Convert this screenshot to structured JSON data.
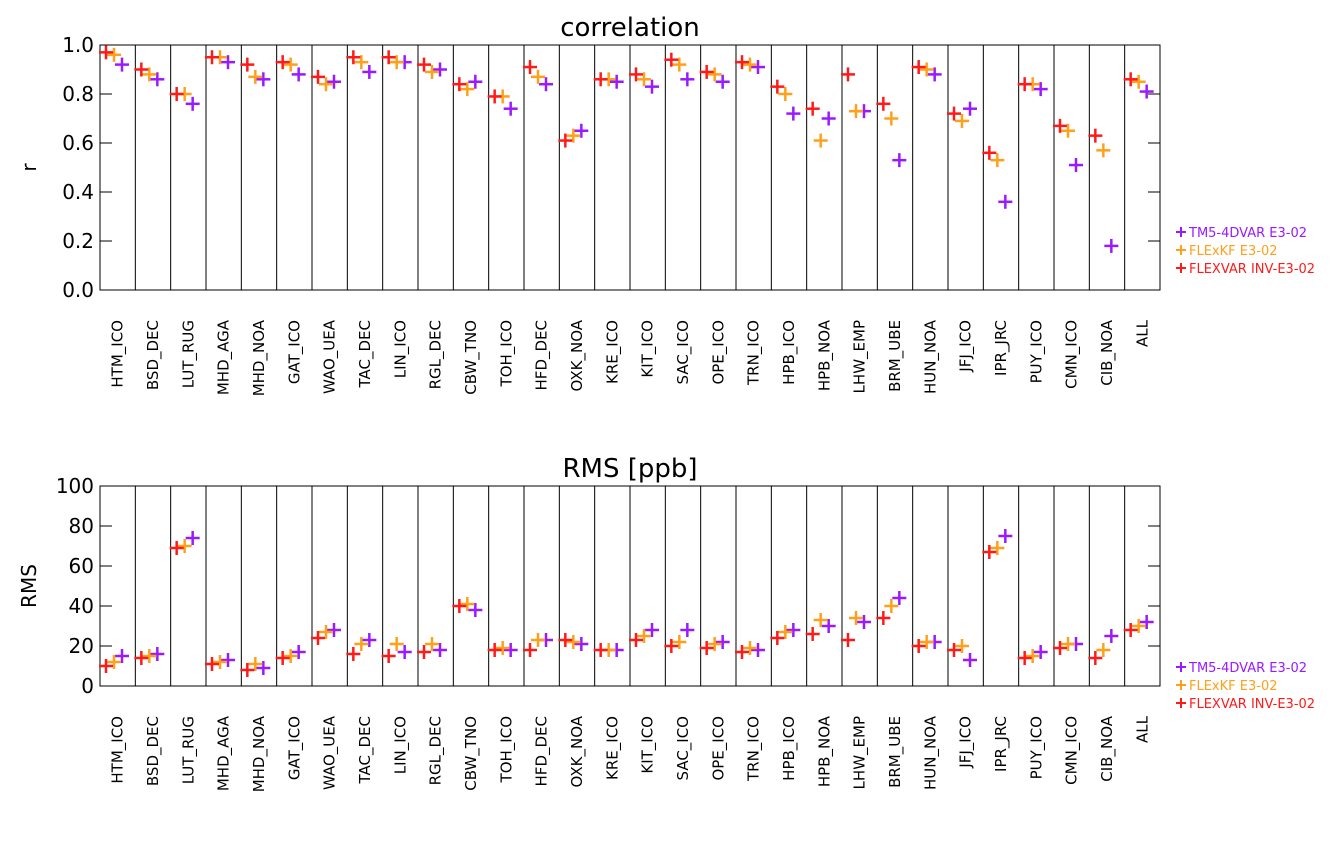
{
  "colors": {
    "TM5-4DVAR E3-02": "#9a1aff",
    "FLExKF E3-02": "#ffa01a",
    "FLEXVAR INV-E3-02": "#ff1a1a"
  },
  "chart_data": [
    {
      "type": "scatter",
      "title": "correlation",
      "ylabel": "r",
      "ylim": [
        0.0,
        1.0
      ],
      "yticks": [
        "0.0",
        "0.2",
        "0.4",
        "0.6",
        "0.8",
        "1.0"
      ],
      "legend_position": "right",
      "categories": [
        "HTM_ICO",
        "BSD_DEC",
        "LUT_RUG",
        "MHD_AGA",
        "MHD_NOA",
        "GAT_ICO",
        "WAO_UEA",
        "TAC_DEC",
        "LIN_ICO",
        "RGL_DEC",
        "CBW_TNO",
        "TOH_ICO",
        "HFD_DEC",
        "OXK_NOA",
        "KRE_ICO",
        "KIT_ICO",
        "SAC_ICO",
        "OPE_ICO",
        "TRN_ICO",
        "HPB_ICO",
        "HPB_NOA",
        "LHW_EMP",
        "BRM_UBE",
        "HUN_NOA",
        "JFJ_ICO",
        "IPR_JRC",
        "PUY_ICO",
        "CMN_ICO",
        "CIB_NOA",
        "ALL"
      ],
      "series": [
        {
          "name": "TM5-4DVAR E3-02",
          "values": [
            0.92,
            0.86,
            0.76,
            0.93,
            0.86,
            0.88,
            0.85,
            0.89,
            0.93,
            0.9,
            0.85,
            0.74,
            0.84,
            0.65,
            0.85,
            0.83,
            0.86,
            0.85,
            0.91,
            0.72,
            0.7,
            0.73,
            0.53,
            0.88,
            0.74,
            0.36,
            0.82,
            0.51,
            0.18,
            0.81
          ]
        },
        {
          "name": "FLExKF E3-02",
          "values": [
            0.96,
            0.88,
            0.8,
            0.95,
            0.87,
            0.92,
            0.84,
            0.93,
            0.93,
            0.89,
            0.82,
            0.79,
            0.87,
            0.63,
            0.86,
            0.86,
            0.92,
            0.88,
            0.92,
            0.8,
            0.61,
            0.73,
            0.7,
            0.9,
            0.69,
            0.53,
            0.84,
            0.65,
            0.57,
            0.85
          ]
        },
        {
          "name": "FLEXVAR INV-E3-02",
          "values": [
            0.97,
            0.9,
            0.8,
            0.95,
            0.92,
            0.93,
            0.87,
            0.95,
            0.95,
            0.92,
            0.84,
            0.79,
            0.91,
            0.61,
            0.86,
            0.88,
            0.94,
            0.89,
            0.93,
            0.83,
            0.74,
            0.88,
            0.76,
            0.91,
            0.72,
            0.56,
            0.84,
            0.67,
            0.63,
            0.86
          ]
        }
      ]
    },
    {
      "type": "scatter",
      "title": "RMS [ppb]",
      "ylabel": "RMS",
      "ylim": [
        0,
        100
      ],
      "yticks": [
        "0",
        "20",
        "40",
        "60",
        "80",
        "100"
      ],
      "legend_position": "right",
      "categories": [
        "HTM_ICO",
        "BSD_DEC",
        "LUT_RUG",
        "MHD_AGA",
        "MHD_NOA",
        "GAT_ICO",
        "WAO_UEA",
        "TAC_DEC",
        "LIN_ICO",
        "RGL_DEC",
        "CBW_TNO",
        "TOH_ICO",
        "HFD_DEC",
        "OXK_NOA",
        "KRE_ICO",
        "KIT_ICO",
        "SAC_ICO",
        "OPE_ICO",
        "TRN_ICO",
        "HPB_ICO",
        "HPB_NOA",
        "LHW_EMP",
        "BRM_UBE",
        "HUN_NOA",
        "JFJ_ICO",
        "IPR_JRC",
        "PUY_ICO",
        "CMN_ICO",
        "CIB_NOA",
        "ALL"
      ],
      "series": [
        {
          "name": "TM5-4DVAR E3-02",
          "values": [
            15,
            16,
            74,
            13,
            9,
            17,
            28,
            23,
            17,
            18,
            38,
            18,
            23,
            21,
            18,
            28,
            28,
            22,
            18,
            28,
            30,
            32,
            44,
            22,
            13,
            75,
            17,
            21,
            25,
            32
          ]
        },
        {
          "name": "FLExKF E3-02",
          "values": [
            12,
            15,
            70,
            12,
            11,
            15,
            27,
            21,
            21,
            21,
            41,
            19,
            23,
            22,
            18,
            25,
            22,
            21,
            19,
            27,
            33,
            34,
            40,
            22,
            20,
            69,
            15,
            21,
            18,
            30
          ]
        },
        {
          "name": "FLEXVAR INV-E3-02",
          "values": [
            10,
            14,
            69,
            11,
            8,
            14,
            24,
            16,
            15,
            17,
            40,
            18,
            18,
            23,
            18,
            23,
            20,
            19,
            17,
            24,
            26,
            23,
            34,
            20,
            18,
            67,
            14,
            19,
            14,
            28
          ]
        }
      ]
    }
  ]
}
